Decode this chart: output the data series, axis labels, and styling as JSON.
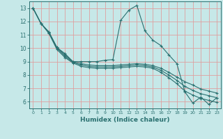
{
  "xlabel": "Humidex (Indice chaleur)",
  "bg_color": "#c6e8e8",
  "grid_color": "#dea0a0",
  "line_color": "#2a7070",
  "marker": "+",
  "marker_size": 3,
  "marker_lw": 0.8,
  "xlim": [
    -0.5,
    23.5
  ],
  "ylim": [
    5.5,
    13.5
  ],
  "xticks": [
    0,
    1,
    2,
    3,
    4,
    5,
    6,
    7,
    8,
    9,
    10,
    11,
    12,
    13,
    14,
    15,
    16,
    17,
    18,
    19,
    20,
    21,
    22,
    23
  ],
  "yticks": [
    6,
    7,
    8,
    9,
    10,
    11,
    12,
    13
  ],
  "line1": {
    "x": [
      0,
      1,
      2,
      3,
      4,
      5,
      6,
      7,
      8,
      9,
      10,
      11,
      12,
      13,
      14,
      15,
      16,
      17,
      18,
      19,
      20,
      21,
      22,
      23
    ],
    "y": [
      13.0,
      11.85,
      11.2,
      10.05,
      9.6,
      9.0,
      9.0,
      9.0,
      9.0,
      9.1,
      9.15,
      12.1,
      12.85,
      13.2,
      11.3,
      10.6,
      10.2,
      9.5,
      8.85,
      6.75,
      5.9,
      6.35,
      5.8,
      6.3
    ]
  },
  "line2": {
    "x": [
      0,
      1,
      2,
      3,
      4,
      5,
      6,
      7,
      8,
      9,
      10,
      11,
      12,
      13,
      14,
      15,
      16,
      17,
      18,
      19,
      20,
      21,
      22,
      23
    ],
    "y": [
      13.0,
      11.85,
      11.2,
      10.05,
      9.5,
      9.0,
      8.85,
      8.75,
      8.7,
      8.7,
      8.7,
      8.75,
      8.8,
      8.85,
      8.8,
      8.7,
      8.5,
      8.2,
      7.85,
      7.5,
      7.25,
      6.95,
      6.8,
      6.65
    ]
  },
  "line3": {
    "x": [
      0,
      1,
      2,
      3,
      4,
      5,
      6,
      7,
      8,
      9,
      10,
      11,
      12,
      13,
      14,
      15,
      16,
      17,
      18,
      19,
      20,
      21,
      22,
      23
    ],
    "y": [
      13.0,
      11.85,
      11.15,
      10.0,
      9.4,
      8.95,
      8.75,
      8.65,
      8.6,
      8.6,
      8.6,
      8.65,
      8.7,
      8.75,
      8.7,
      8.6,
      8.35,
      8.0,
      7.6,
      7.15,
      6.85,
      6.6,
      6.45,
      6.3
    ]
  },
  "line4": {
    "x": [
      0,
      1,
      2,
      3,
      4,
      5,
      6,
      7,
      8,
      9,
      10,
      11,
      12,
      13,
      14,
      15,
      16,
      17,
      18,
      19,
      20,
      21,
      22,
      23
    ],
    "y": [
      13.0,
      11.85,
      11.1,
      9.9,
      9.3,
      8.9,
      8.65,
      8.55,
      8.5,
      8.5,
      8.5,
      8.55,
      8.6,
      8.65,
      8.6,
      8.5,
      8.2,
      7.8,
      7.35,
      6.8,
      6.5,
      6.25,
      6.1,
      5.95
    ]
  }
}
